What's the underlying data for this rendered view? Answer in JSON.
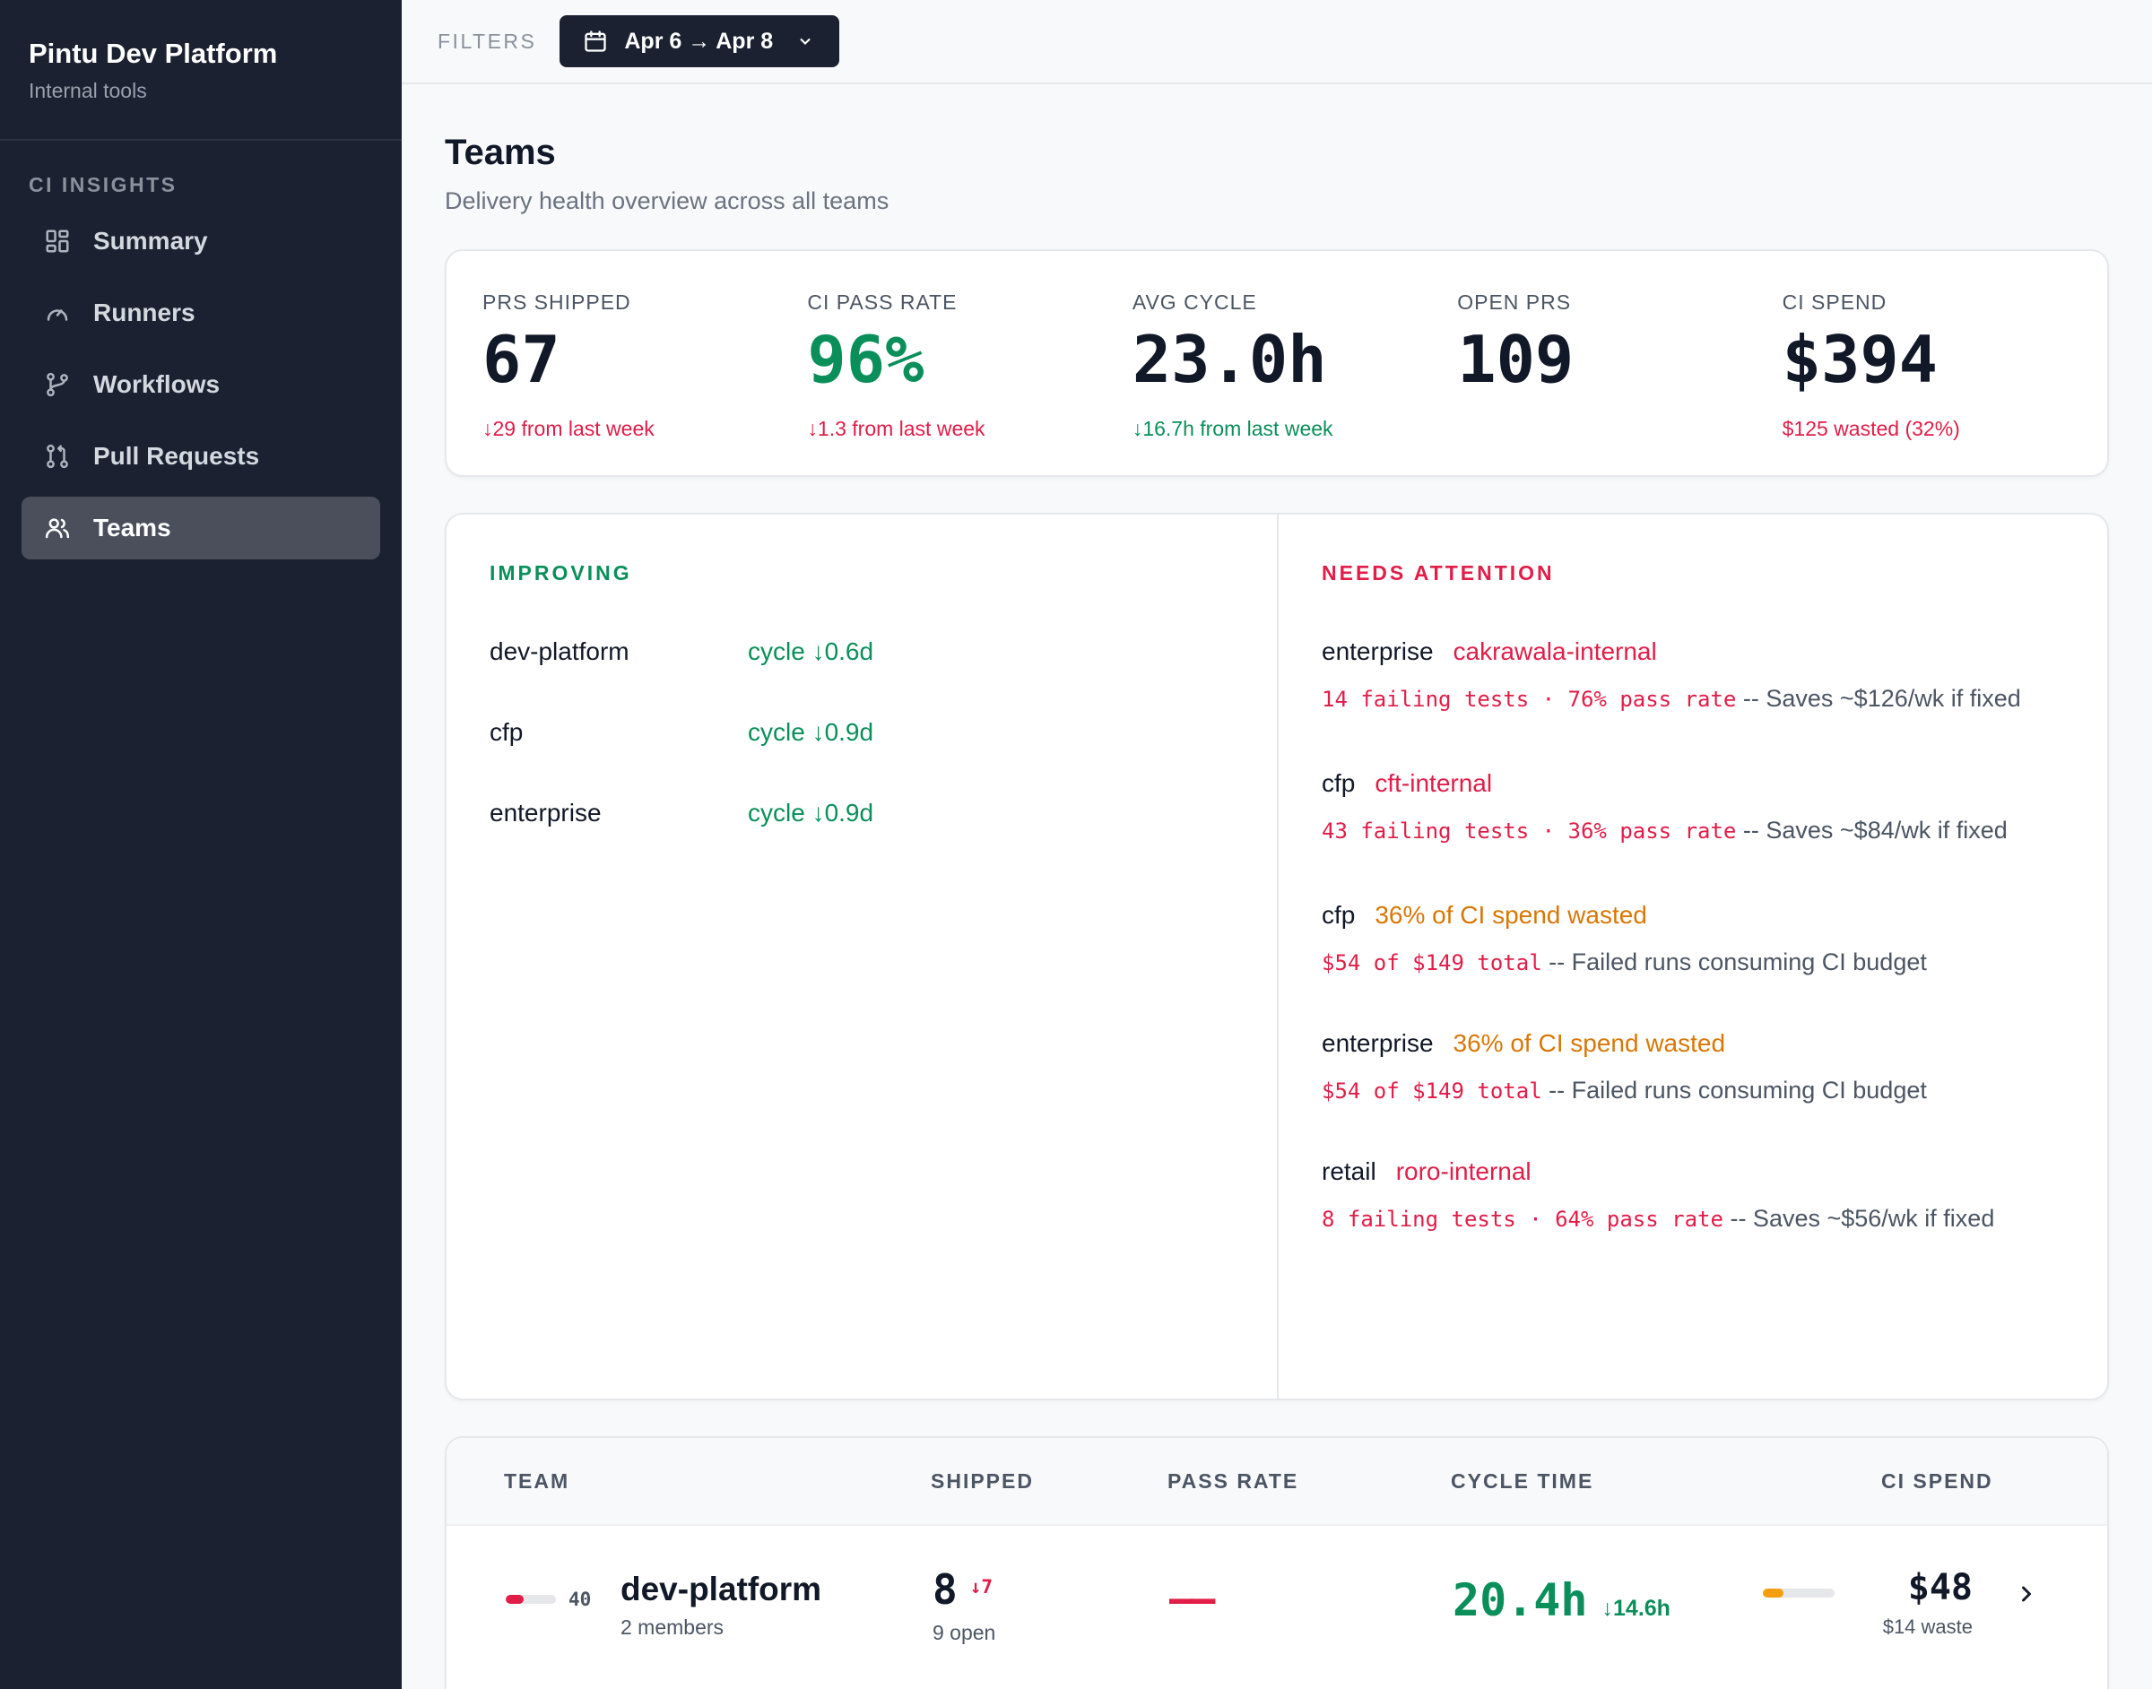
{
  "sidebar": {
    "title": "Pintu Dev Platform",
    "subtitle": "Internal tools",
    "section": "CI INSIGHTS",
    "items": [
      {
        "label": "Summary",
        "icon": "grid-icon"
      },
      {
        "label": "Runners",
        "icon": "gauge-icon"
      },
      {
        "label": "Workflows",
        "icon": "git-branch-icon"
      },
      {
        "label": "Pull Requests",
        "icon": "git-pull-request-icon"
      },
      {
        "label": "Teams",
        "icon": "users-icon"
      }
    ],
    "active": "Teams"
  },
  "topbar": {
    "filters_label": "FILTERS",
    "date_range": "Apr 6 → Apr 8"
  },
  "page": {
    "title": "Teams",
    "subtitle": "Delivery health overview across all teams"
  },
  "stats": [
    {
      "label": "PRS SHIPPED",
      "value": "67",
      "note": "↓29 from last week",
      "note_color": "#e11d48"
    },
    {
      "label": "CI PASS RATE",
      "value": "96%",
      "note": "↓1.3 from last week",
      "note_color": "#e11d48"
    },
    {
      "label": "AVG CYCLE",
      "value": "23.0h",
      "note": "↓16.7h from last week",
      "note_color": "#0a8f5a"
    },
    {
      "label": "OPEN PRS",
      "value": "109",
      "note": ""
    },
    {
      "label": "CI SPEND",
      "value": "$394",
      "note": "$125 wasted (32%)",
      "note_color": "#e11d48"
    }
  ],
  "improving": {
    "heading": "IMPROVING",
    "rows": [
      {
        "team": "dev-platform",
        "metric": "cycle ↓0.6d"
      },
      {
        "team": "cfp",
        "metric": "cycle ↓0.9d"
      },
      {
        "team": "enterprise",
        "metric": "cycle ↓0.9d"
      }
    ]
  },
  "attention": {
    "heading": "NEEDS ATTENTION",
    "items": [
      {
        "team": "enterprise",
        "issue": "cakrawala-internal",
        "issue_color": "#e11d48",
        "metric": "14 failing tests · 76% pass rate",
        "note": "-- Saves ~$126/wk if fixed"
      },
      {
        "team": "cfp",
        "issue": "cft-internal",
        "issue_color": "#e11d48",
        "metric": "43 failing tests · 36% pass rate",
        "note": "-- Saves ~$84/wk if fixed"
      },
      {
        "team": "cfp",
        "issue": "36% of CI spend wasted",
        "issue_color": "#d97706",
        "metric": "$54 of $149 total",
        "note": "-- Failed runs consuming CI budget"
      },
      {
        "team": "enterprise",
        "issue": "36% of CI spend wasted",
        "issue_color": "#d97706",
        "metric": "$54 of $149 total",
        "note": "-- Failed runs consuming CI budget"
      },
      {
        "team": "retail",
        "issue": "roro-internal",
        "issue_color": "#e11d48",
        "metric": "8 failing tests · 64% pass rate",
        "note": "-- Saves ~$56/wk if fixed"
      }
    ]
  },
  "table": {
    "headers": {
      "team": "TEAM",
      "shipped": "SHIPPED",
      "pass_rate": "PASS RATE",
      "cycle_time": "CYCLE TIME",
      "ci_spend": "CI SPEND"
    },
    "rows": [
      {
        "score": "40",
        "score_fraction": 0.35,
        "score_color": "#e11d48",
        "team": "dev-platform",
        "members": "2 members",
        "shipped": "8",
        "shipped_delta": "↓7",
        "open": "9 open",
        "pass_rate": "——",
        "cycle_time": "20.4h",
        "cycle_delta": "↓14.6h",
        "spend_fraction": 0.29,
        "spend_color": "#f59e0b",
        "spend": "$48",
        "waste": "$14 waste"
      }
    ]
  }
}
